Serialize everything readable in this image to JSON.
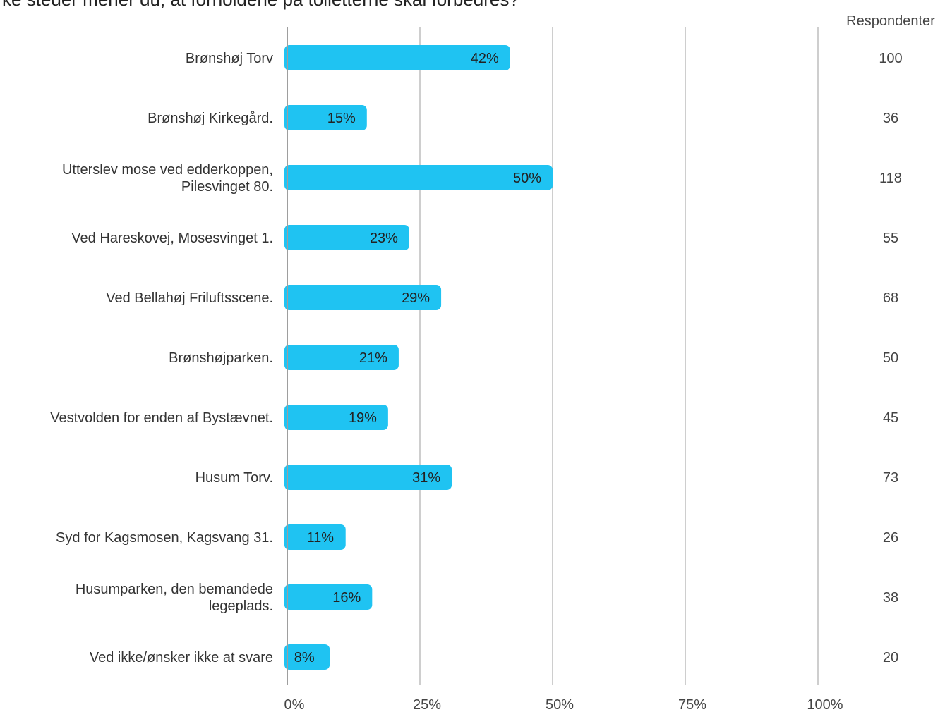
{
  "chart_data": {
    "type": "bar",
    "orientation": "horizontal",
    "title": "ke steder mener du, at forholdene på toiletterne skal forbedres?",
    "categories": [
      [
        "Brønshøj Torv"
      ],
      [
        "Brønshøj Kirkegård."
      ],
      [
        "Utterslev mose ved edderkoppen,",
        "Pilesvinget 80."
      ],
      [
        "Ved Hareskovej, Mosesvinget 1."
      ],
      [
        "Ved Bellahøj Friluftsscene."
      ],
      [
        "Brønshøjparken."
      ],
      [
        "Vestvolden for enden af Bystævnet."
      ],
      [
        "Husum Torv."
      ],
      [
        "Syd for Kagsmosen, Kagsvang 31."
      ],
      [
        "Husumparken, den bemandede",
        "legeplads."
      ],
      [
        "Ved ikke/ønsker ikke at svare"
      ]
    ],
    "values": [
      42,
      15,
      50,
      23,
      29,
      21,
      19,
      31,
      11,
      16,
      8
    ],
    "value_labels": [
      "42%",
      "15%",
      "50%",
      "23%",
      "29%",
      "21%",
      "19%",
      "31%",
      "11%",
      "16%",
      "8%"
    ],
    "respondents_header": "Respondenter",
    "respondents": [
      "100",
      "36",
      "118",
      "55",
      "68",
      "50",
      "45",
      "73",
      "26",
      "38",
      "20"
    ],
    "xlim": [
      0,
      100
    ],
    "xticks": [
      0,
      25,
      50,
      75,
      100
    ],
    "xtick_labels": [
      "0%",
      "25%",
      "50%",
      "75%",
      "100%"
    ],
    "grid": true,
    "bar_color": "#1FC3F2",
    "grid_color": "#9E9E9E",
    "axis_color": "#9E9E9E"
  }
}
